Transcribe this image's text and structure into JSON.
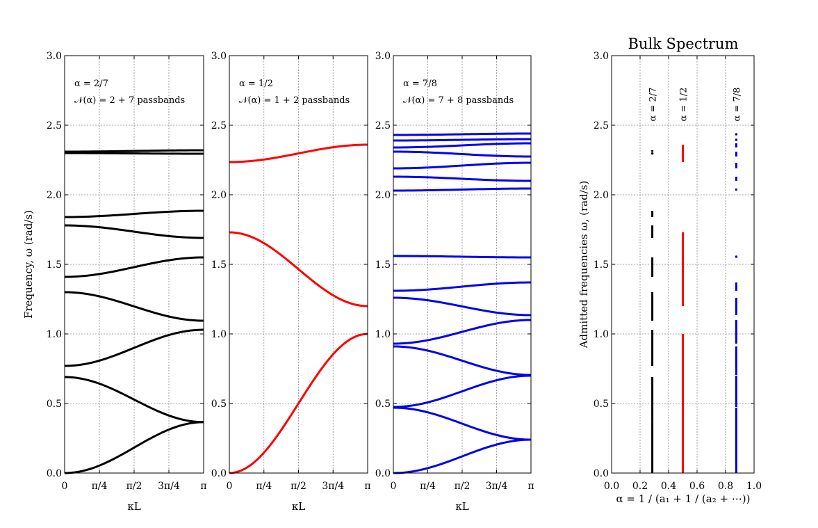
{
  "chart_data": [
    {
      "type": "line",
      "panel": "band-alpha-2-7",
      "xlabel": "κL",
      "ylabel": "Frequency, ω (rad/s)",
      "xlim": [
        0,
        3.14159
      ],
      "ylim": [
        0,
        3.0
      ],
      "xticks": [
        0,
        0.7854,
        1.5708,
        2.3562,
        3.14159
      ],
      "xtick_labels": [
        "0",
        "π/4",
        "π/2",
        "3π/4",
        "π"
      ],
      "yticks": [
        0.0,
        0.5,
        1.0,
        1.5,
        2.0,
        2.5,
        3.0
      ],
      "ytick_labels": [
        "0.0",
        "0.5",
        "1.0",
        "1.5",
        "2.0",
        "2.5",
        "3.0"
      ],
      "grid": true,
      "color": "#000000",
      "annotations": [
        "α = 2/7",
        "𝒩(α) = 2 + 7 passbands"
      ],
      "bands": [
        [
          0.0,
          0.366
        ],
        [
          0.69,
          0.366
        ],
        [
          0.77,
          1.03
        ],
        [
          1.3,
          1.095
        ],
        [
          1.41,
          1.55
        ],
        [
          1.78,
          1.69
        ],
        [
          1.84,
          1.885
        ],
        [
          2.3,
          2.295
        ],
        [
          2.31,
          2.32
        ]
      ]
    },
    {
      "type": "line",
      "panel": "band-alpha-1-2",
      "xlabel": "κL",
      "xlim": [
        0,
        3.14159
      ],
      "ylim": [
        0,
        3.0
      ],
      "xticks": [
        0,
        0.7854,
        1.5708,
        2.3562,
        3.14159
      ],
      "xtick_labels": [
        "0",
        "π/4",
        "π/2",
        "3π/4",
        "π"
      ],
      "yticks": [
        0.0,
        0.5,
        1.0,
        1.5,
        2.0,
        2.5,
        3.0
      ],
      "ytick_labels": [
        "0.0",
        "0.5",
        "1.0",
        "1.5",
        "2.0",
        "2.5",
        "3.0"
      ],
      "grid": true,
      "color": "#ff0000",
      "annotations": [
        "α = 1/2",
        "𝒩(α) = 1 + 2 passbands"
      ],
      "bands": [
        [
          0.0,
          1.0
        ],
        [
          1.73,
          1.2
        ],
        [
          2.235,
          2.36
        ]
      ]
    },
    {
      "type": "line",
      "panel": "band-alpha-7-8",
      "xlabel": "κL",
      "xlim": [
        0,
        3.14159
      ],
      "ylim": [
        0,
        3.0
      ],
      "xticks": [
        0,
        0.7854,
        1.5708,
        2.3562,
        3.14159
      ],
      "xtick_labels": [
        "0",
        "π/4",
        "π/2",
        "3π/4",
        "π"
      ],
      "yticks": [
        0.0,
        0.5,
        1.0,
        1.5,
        2.0,
        2.5,
        3.0
      ],
      "ytick_labels": [
        "0.0",
        "0.5",
        "1.0",
        "1.5",
        "2.0",
        "2.5",
        "3.0"
      ],
      "grid": true,
      "color": "#0000ee",
      "annotations": [
        "α = 7/8",
        "𝒩(α) = 7 + 8 passbands"
      ],
      "bands": [
        [
          0.0,
          0.24
        ],
        [
          0.47,
          0.24
        ],
        [
          0.475,
          0.7
        ],
        [
          0.91,
          0.705
        ],
        [
          0.93,
          1.1
        ],
        [
          1.26,
          1.135
        ],
        [
          1.31,
          1.37
        ],
        [
          1.56,
          1.55
        ],
        [
          2.03,
          2.045
        ],
        [
          2.13,
          2.1
        ],
        [
          2.19,
          2.23
        ],
        [
          2.31,
          2.275
        ],
        [
          2.34,
          2.37
        ],
        [
          2.39,
          2.4
        ],
        [
          2.43,
          2.44
        ]
      ]
    },
    {
      "type": "scatter",
      "panel": "bulk-spectrum",
      "title": "Bulk Spectrum",
      "xlabel": "α = 1 / (a₁ + 1 / (a₂ + ⋯))",
      "ylabel": "Admitted frequencies ω, (rad/s)",
      "xlim": [
        0.0,
        1.0
      ],
      "ylim": [
        0.0,
        3.0
      ],
      "xticks": [
        0.0,
        0.2,
        0.4,
        0.6,
        0.8,
        1.0
      ],
      "xtick_labels": [
        "0.0",
        "0.2",
        "0.4",
        "0.6",
        "0.8",
        "1.0"
      ],
      "yticks": [
        0.0,
        0.5,
        1.0,
        1.5,
        2.0,
        2.5,
        3.0
      ],
      "ytick_labels": [
        "0.0",
        "0.5",
        "1.0",
        "1.5",
        "2.0",
        "2.5",
        "3.0"
      ],
      "grid": true,
      "series": [
        {
          "name": "α = 2/7",
          "alpha": 0.2857,
          "color": "#000000",
          "intervals": [
            [
              0.0,
              0.366
            ],
            [
              0.366,
              0.69
            ],
            [
              0.77,
              1.03
            ],
            [
              1.095,
              1.3
            ],
            [
              1.41,
              1.55
            ],
            [
              1.69,
              1.78
            ],
            [
              1.84,
              1.885
            ],
            [
              2.295,
              2.3
            ],
            [
              2.31,
              2.32
            ]
          ]
        },
        {
          "name": "α = 1/2",
          "alpha": 0.5,
          "color": "#ff0000",
          "intervals": [
            [
              0.0,
              1.0
            ],
            [
              1.2,
              1.73
            ],
            [
              2.235,
              2.36
            ]
          ]
        },
        {
          "name": "α = 7/8",
          "alpha": 0.875,
          "color": "#0000ee",
          "intervals": [
            [
              0.0,
              0.24
            ],
            [
              0.24,
              0.47
            ],
            [
              0.475,
              0.7
            ],
            [
              0.705,
              0.91
            ],
            [
              0.93,
              1.1
            ],
            [
              1.135,
              1.26
            ],
            [
              1.31,
              1.37
            ],
            [
              1.55,
              1.56
            ],
            [
              2.03,
              2.045
            ],
            [
              2.1,
              2.13
            ],
            [
              2.19,
              2.23
            ],
            [
              2.275,
              2.31
            ],
            [
              2.34,
              2.37
            ],
            [
              2.39,
              2.4
            ],
            [
              2.43,
              2.44
            ]
          ]
        }
      ]
    }
  ]
}
